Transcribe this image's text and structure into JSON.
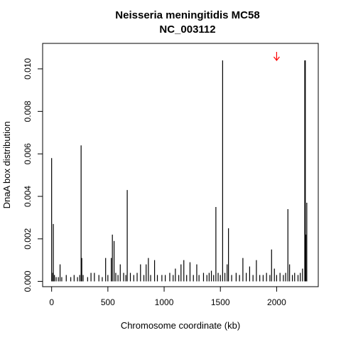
{
  "chart_data": {
    "type": "bar",
    "title": "Neisseria meningitidis MC58",
    "subtitle": "NC_003112",
    "xlabel": "Chromosome coordinate (kb)",
    "ylabel": "DnaA box distribution",
    "xlim": [
      -80,
      2370
    ],
    "ylim": [
      -0.00025,
      0.0112
    ],
    "x_ticks": [
      0,
      500,
      1000,
      1500,
      2000
    ],
    "x_tick_labels": [
      "0",
      "500",
      "1000",
      "1500",
      "2000"
    ],
    "y_ticks": [
      0.0,
      0.002,
      0.004,
      0.006,
      0.008,
      0.01
    ],
    "y_tick_labels": [
      "0.000",
      "0.002",
      "0.004",
      "0.006",
      "0.008",
      "0.010"
    ],
    "grid": false,
    "legend": "none",
    "bar_color": "#000000",
    "arrow": {
      "x": 2000,
      "y_top": 0.0108,
      "y_bottom": 0.0104,
      "color": "#ff0000"
    },
    "points": [
      {
        "x": 0,
        "y": 0.0058
      },
      {
        "x": 10,
        "y": 0.0004
      },
      {
        "x": 15,
        "y": 0.0027
      },
      {
        "x": 25,
        "y": 0.0003
      },
      {
        "x": 40,
        "y": 0.0002
      },
      {
        "x": 60,
        "y": 0.0002
      },
      {
        "x": 75,
        "y": 0.0008
      },
      {
        "x": 90,
        "y": 0.0002
      },
      {
        "x": 130,
        "y": 0.0003
      },
      {
        "x": 170,
        "y": 0.0002
      },
      {
        "x": 200,
        "y": 0.0003
      },
      {
        "x": 230,
        "y": 0.0002
      },
      {
        "x": 250,
        "y": 0.0003
      },
      {
        "x": 262,
        "y": 0.0064
      },
      {
        "x": 268,
        "y": 0.0011
      },
      {
        "x": 280,
        "y": 0.0003
      },
      {
        "x": 320,
        "y": 0.0002
      },
      {
        "x": 350,
        "y": 0.0004
      },
      {
        "x": 380,
        "y": 0.0004
      },
      {
        "x": 420,
        "y": 0.0003
      },
      {
        "x": 450,
        "y": 0.0002
      },
      {
        "x": 480,
        "y": 0.0011
      },
      {
        "x": 500,
        "y": 0.0003
      },
      {
        "x": 530,
        "y": 0.0011
      },
      {
        "x": 540,
        "y": 0.0022
      },
      {
        "x": 555,
        "y": 0.0019
      },
      {
        "x": 570,
        "y": 0.0004
      },
      {
        "x": 590,
        "y": 0.0003
      },
      {
        "x": 610,
        "y": 0.0008
      },
      {
        "x": 640,
        "y": 0.0004
      },
      {
        "x": 660,
        "y": 0.0003
      },
      {
        "x": 672,
        "y": 0.0043
      },
      {
        "x": 700,
        "y": 0.0004
      },
      {
        "x": 730,
        "y": 0.0003
      },
      {
        "x": 760,
        "y": 0.0004
      },
      {
        "x": 790,
        "y": 0.0008
      },
      {
        "x": 820,
        "y": 0.0003
      },
      {
        "x": 840,
        "y": 0.0008
      },
      {
        "x": 860,
        "y": 0.0011
      },
      {
        "x": 880,
        "y": 0.0003
      },
      {
        "x": 915,
        "y": 0.001
      },
      {
        "x": 940,
        "y": 0.0003
      },
      {
        "x": 980,
        "y": 0.0003
      },
      {
        "x": 1010,
        "y": 0.0003
      },
      {
        "x": 1050,
        "y": 0.0004
      },
      {
        "x": 1080,
        "y": 0.0003
      },
      {
        "x": 1100,
        "y": 0.0006
      },
      {
        "x": 1130,
        "y": 0.0003
      },
      {
        "x": 1150,
        "y": 0.0008
      },
      {
        "x": 1175,
        "y": 0.001
      },
      {
        "x": 1200,
        "y": 0.0003
      },
      {
        "x": 1230,
        "y": 0.0009
      },
      {
        "x": 1260,
        "y": 0.0003
      },
      {
        "x": 1290,
        "y": 0.0008
      },
      {
        "x": 1310,
        "y": 0.0003
      },
      {
        "x": 1350,
        "y": 0.0004
      },
      {
        "x": 1380,
        "y": 0.0003
      },
      {
        "x": 1400,
        "y": 0.0004
      },
      {
        "x": 1420,
        "y": 0.0005
      },
      {
        "x": 1440,
        "y": 0.0003
      },
      {
        "x": 1460,
        "y": 0.0035
      },
      {
        "x": 1480,
        "y": 0.0004
      },
      {
        "x": 1500,
        "y": 0.0003
      },
      {
        "x": 1520,
        "y": 0.0104
      },
      {
        "x": 1540,
        "y": 0.0004
      },
      {
        "x": 1560,
        "y": 0.0008
      },
      {
        "x": 1572,
        "y": 0.0025
      },
      {
        "x": 1600,
        "y": 0.0003
      },
      {
        "x": 1640,
        "y": 0.0004
      },
      {
        "x": 1670,
        "y": 0.0003
      },
      {
        "x": 1700,
        "y": 0.0011
      },
      {
        "x": 1730,
        "y": 0.0004
      },
      {
        "x": 1760,
        "y": 0.0007
      },
      {
        "x": 1790,
        "y": 0.0003
      },
      {
        "x": 1820,
        "y": 0.001
      },
      {
        "x": 1850,
        "y": 0.0003
      },
      {
        "x": 1880,
        "y": 0.0003
      },
      {
        "x": 1910,
        "y": 0.0004
      },
      {
        "x": 1940,
        "y": 0.0003
      },
      {
        "x": 1955,
        "y": 0.0015
      },
      {
        "x": 1980,
        "y": 0.0006
      },
      {
        "x": 2000,
        "y": 0.0003
      },
      {
        "x": 2030,
        "y": 0.0004
      },
      {
        "x": 2060,
        "y": 0.0003
      },
      {
        "x": 2080,
        "y": 0.0004
      },
      {
        "x": 2100,
        "y": 0.0034
      },
      {
        "x": 2115,
        "y": 0.0008
      },
      {
        "x": 2140,
        "y": 0.0003
      },
      {
        "x": 2160,
        "y": 0.0004
      },
      {
        "x": 2190,
        "y": 0.0003
      },
      {
        "x": 2210,
        "y": 0.0004
      },
      {
        "x": 2230,
        "y": 0.0006
      },
      {
        "x": 2250,
        "y": 0.0104
      },
      {
        "x": 2255,
        "y": 0.0104
      },
      {
        "x": 2260,
        "y": 0.0022
      },
      {
        "x": 2268,
        "y": 0.0037
      }
    ]
  }
}
